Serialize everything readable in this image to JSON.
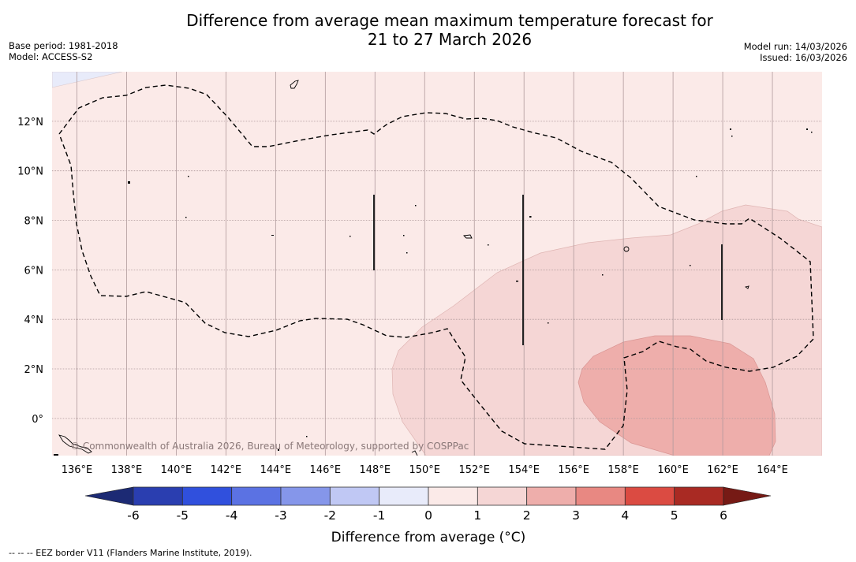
{
  "header": {
    "title_line1": "Difference from average mean maximum temperature forecast for",
    "title_line2": "21 to 27 March 2026",
    "base_period": "Base period: 1981-2018",
    "model": "Model: ACCESS-S2",
    "model_run": "Model run: 14/03/2026",
    "issued": "Issued: 16/03/2026"
  },
  "map": {
    "copyright": "© Commonwealth of Australia 2026, Bureau of Meteorology, supported by COSPPac",
    "lon_ticks": [
      "136°E",
      "138°E",
      "140°E",
      "142°E",
      "144°E",
      "146°E",
      "148°E",
      "150°E",
      "152°E",
      "154°E",
      "156°E",
      "158°E",
      "160°E",
      "162°E",
      "164°E"
    ],
    "lat_ticks": [
      "12°N",
      "10°N",
      "8°N",
      "6°N",
      "4°N",
      "2°N",
      "0°"
    ],
    "lon_range": [
      135.0,
      166.0
    ],
    "lat_range": [
      -1.5,
      14.0
    ],
    "background_category": "0 to 1",
    "regions": [
      {
        "name": "anomaly-1-to-2-region",
        "category": "1 to 2",
        "color": "#f5d6d5"
      },
      {
        "name": "anomaly-2-to-3-region",
        "category": "2 to 3",
        "color": "#eeaeab"
      }
    ]
  },
  "colorbar": {
    "title": "Difference from average (°C)",
    "ticks": [
      "-6",
      "-5",
      "-4",
      "-3",
      "-2",
      "-1",
      "0",
      "1",
      "2",
      "3",
      "4",
      "5",
      "6"
    ],
    "bins": [
      {
        "range": "-6 to -5",
        "color": "#2a3eb0"
      },
      {
        "range": "-5 to -4",
        "color": "#3050dd"
      },
      {
        "range": "-4 to -3",
        "color": "#5b72e3"
      },
      {
        "range": "-3 to -2",
        "color": "#8596ea"
      },
      {
        "range": "-2 to -1",
        "color": "#c0c8f4"
      },
      {
        "range": "-1 to 0",
        "color": "#e8ebfa"
      },
      {
        "range": "0 to 1",
        "color": "#fbeae8"
      },
      {
        "range": "1 to 2",
        "color": "#f5d6d5"
      },
      {
        "range": "2 to 3",
        "color": "#eeaeab"
      },
      {
        "range": "3 to 4",
        "color": "#e88882"
      },
      {
        "range": "4 to 5",
        "color": "#db4b42"
      },
      {
        "range": "5 to 6",
        "color": "#a92a23"
      }
    ],
    "extend_low_color": "#1c2a74",
    "extend_high_color": "#761a15"
  },
  "footnote": "--  --  -- EEZ border V11 (Flanders Marine Institute, 2019)."
}
